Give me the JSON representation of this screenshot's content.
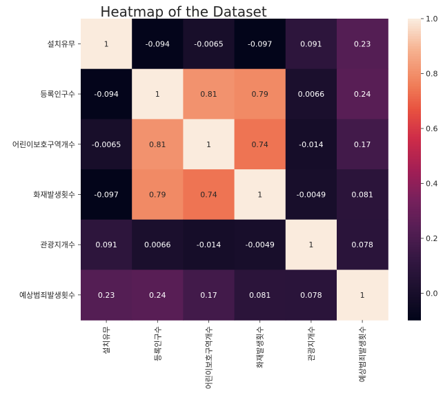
{
  "chart_data": {
    "type": "heatmap",
    "title": "Heatmap of the Dataset",
    "xlabel": "",
    "ylabel": "",
    "row_labels": [
      "설치유무",
      "등록인구수",
      "어린이보호구역개수",
      "화재발생횟수",
      "관광지개수",
      "예상범죄발생횟수"
    ],
    "col_labels": [
      "설치유무",
      "등록인구수",
      "어린이보호구역개수",
      "화재발생횟수",
      "관광지개수",
      "예상범죄발생횟수"
    ],
    "values": [
      [
        1,
        -0.094,
        -0.0065,
        -0.097,
        0.091,
        0.23
      ],
      [
        -0.094,
        1,
        0.81,
        0.79,
        0.0066,
        0.24
      ],
      [
        -0.0065,
        0.81,
        1,
        0.74,
        -0.014,
        0.17
      ],
      [
        -0.097,
        0.79,
        0.74,
        1,
        -0.0049,
        0.081
      ],
      [
        0.091,
        0.0066,
        -0.014,
        -0.0049,
        1,
        0.078
      ],
      [
        0.23,
        0.24,
        0.17,
        0.081,
        0.078,
        1
      ]
    ],
    "value_labels": [
      [
        "1",
        "-0.094",
        "-0.0065",
        "-0.097",
        "0.091",
        "0.23"
      ],
      [
        "-0.094",
        "1",
        "0.81",
        "0.79",
        "0.0066",
        "0.24"
      ],
      [
        "-0.0065",
        "0.81",
        "1",
        "0.74",
        "-0.014",
        "0.17"
      ],
      [
        "-0.097",
        "0.79",
        "0.74",
        "1",
        "-0.0049",
        "0.081"
      ],
      [
        "0.091",
        "0.0066",
        "-0.014",
        "-0.0049",
        "1",
        "0.078"
      ],
      [
        "0.23",
        "0.24",
        "0.17",
        "0.081",
        "0.078",
        "1"
      ]
    ],
    "colormap": "rocket",
    "vmin": -0.097,
    "vmax": 1,
    "colorbar_ticks": [
      1.0,
      0.8,
      0.6,
      0.4,
      0.2,
      0.0
    ],
    "colorbar_tick_labels": [
      "1.0",
      "0.8",
      "0.6",
      "0.4",
      "0.2",
      "0.0"
    ]
  }
}
